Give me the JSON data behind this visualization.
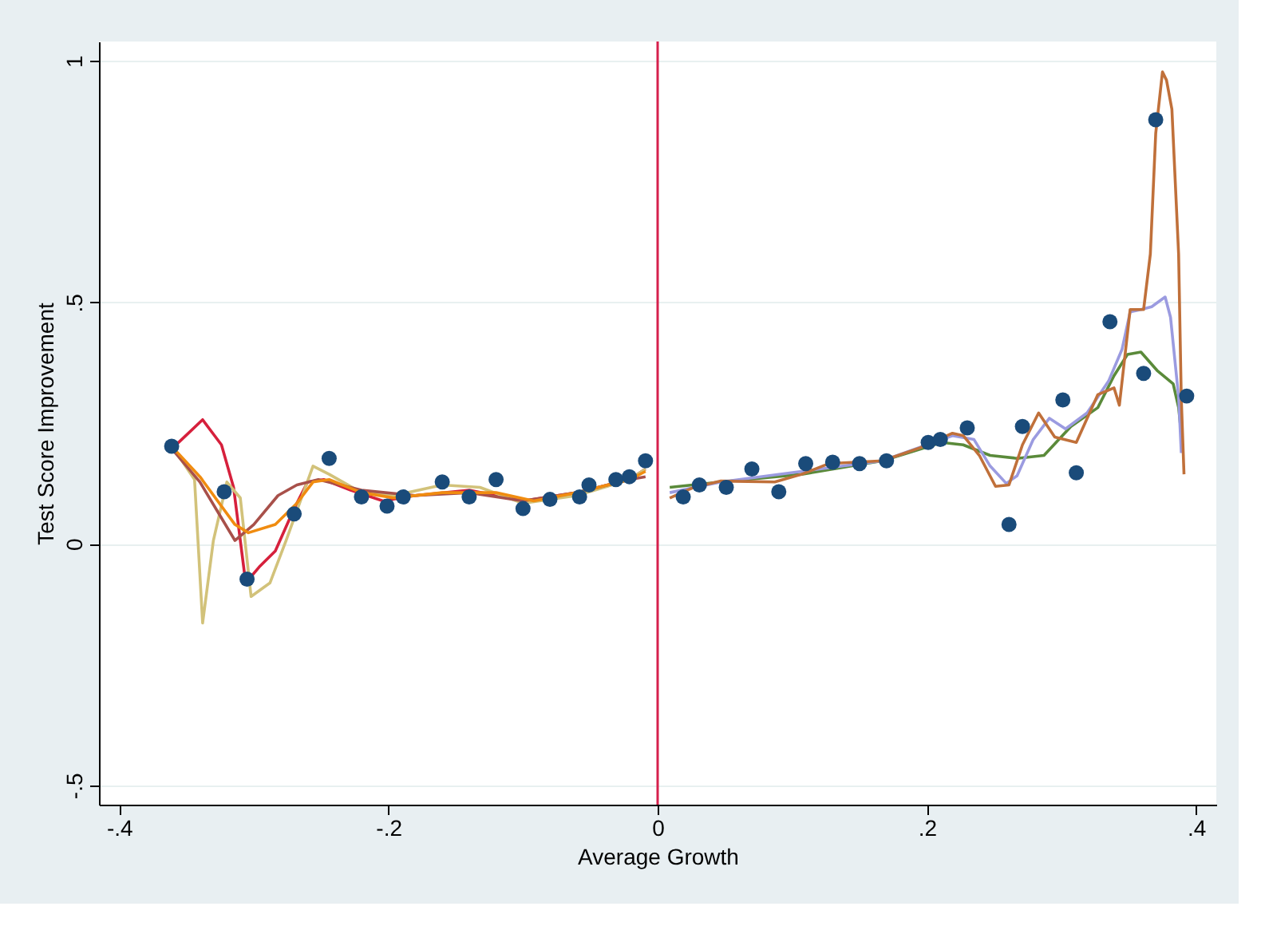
{
  "chart_data": {
    "type": "scatter",
    "xlabel": "Average Growth",
    "ylabel": "Test Score Improvement",
    "xlim": [
      -0.415,
      0.415
    ],
    "ylim": [
      -0.54,
      1.04
    ],
    "xticks": [
      {
        "value": -0.4,
        "label": "-.4"
      },
      {
        "value": -0.2,
        "label": "-.2"
      },
      0,
      {
        "value": 0.2,
        "label": ".2"
      },
      {
        "value": 0.4,
        "label": ".4"
      }
    ],
    "yticks": [
      {
        "value": -0.5,
        "label": "-.5"
      },
      0,
      {
        "value": 0.5,
        "label": ".5"
      },
      1
    ],
    "grid": "y",
    "ref_lines": [
      {
        "axis": "x",
        "value": 0,
        "color": "#d6204c"
      }
    ],
    "series": [
      {
        "color": "#1a4b7a",
        "marker": "circle",
        "x": [
          -0.361,
          -0.322,
          -0.305,
          -0.27,
          -0.244,
          -0.22,
          -0.201,
          -0.189,
          -0.16,
          -0.14,
          -0.12,
          -0.1,
          -0.08,
          -0.058,
          -0.051,
          -0.031,
          -0.021,
          -0.009,
          0.019,
          0.031,
          0.051,
          0.07,
          0.09,
          0.11,
          0.13,
          0.15,
          0.17,
          0.201,
          0.21,
          0.23,
          0.261,
          0.271,
          0.301,
          0.311,
          0.336,
          0.361,
          0.37,
          0.393
        ],
        "values": [
          0.202,
          0.108,
          -0.073,
          0.062,
          0.177,
          0.097,
          0.078,
          0.097,
          0.128,
          0.097,
          0.133,
          0.073,
          0.092,
          0.097,
          0.122,
          0.133,
          0.139,
          0.172,
          0.097,
          0.122,
          0.117,
          0.155,
          0.108,
          0.166,
          0.169,
          0.166,
          0.172,
          0.21,
          0.216,
          0.24,
          0.04,
          0.243,
          0.298,
          0.147,
          0.46,
          0.353,
          0.878,
          0.306
        ]
      },
      {
        "type": "line",
        "color": "#d6203c",
        "x": [
          -0.36,
          -0.338,
          -0.324,
          -0.315,
          -0.306,
          -0.296,
          -0.284,
          -0.27,
          -0.26,
          -0.248,
          -0.228,
          -0.204,
          -0.18,
          -0.14,
          -0.12,
          -0.1,
          -0.06,
          -0.021,
          -0.009
        ],
        "values": [
          0.199,
          0.257,
          0.205,
          0.117,
          -0.081,
          -0.048,
          -0.015,
          0.073,
          0.128,
          0.133,
          0.111,
          0.089,
          0.1,
          0.111,
          0.1,
          0.089,
          0.106,
          0.133,
          0.155
        ]
      },
      {
        "type": "line",
        "color": "#d2c27a",
        "x": [
          -0.36,
          -0.344,
          -0.338,
          -0.33,
          -0.32,
          -0.31,
          -0.302,
          -0.288,
          -0.276,
          -0.256,
          -0.244,
          -0.22,
          -0.196,
          -0.16,
          -0.132,
          -0.1,
          -0.06,
          -0.021,
          -0.009
        ],
        "values": [
          0.199,
          0.133,
          -0.164,
          0.007,
          0.128,
          0.095,
          -0.109,
          -0.081,
          0.007,
          0.161,
          0.144,
          0.106,
          0.1,
          0.122,
          0.117,
          0.084,
          0.1,
          0.133,
          0.155
        ]
      },
      {
        "type": "line",
        "color": "#a8504a",
        "x": [
          -0.36,
          -0.34,
          -0.314,
          -0.3,
          -0.282,
          -0.268,
          -0.252,
          -0.22,
          -0.18,
          -0.14,
          -0.1,
          -0.06,
          -0.021,
          -0.009
        ],
        "values": [
          0.194,
          0.128,
          0.007,
          0.04,
          0.1,
          0.122,
          0.133,
          0.111,
          0.1,
          0.106,
          0.089,
          0.106,
          0.133,
          0.139
        ]
      },
      {
        "type": "line",
        "color": "#f08c10",
        "x": [
          -0.36,
          -0.34,
          -0.314,
          -0.304,
          -0.284,
          -0.268,
          -0.256,
          -0.244,
          -0.22,
          -0.196,
          -0.16,
          -0.12,
          -0.092,
          -0.06,
          -0.021,
          -0.009
        ],
        "values": [
          0.199,
          0.139,
          0.04,
          0.023,
          0.04,
          0.084,
          0.128,
          0.133,
          0.106,
          0.095,
          0.106,
          0.106,
          0.089,
          0.106,
          0.133,
          0.15
        ]
      },
      {
        "type": "line",
        "color": "#5a8a3a",
        "x": [
          0.009,
          0.047,
          0.107,
          0.167,
          0.211,
          0.227,
          0.247,
          0.267,
          0.287,
          0.307,
          0.327,
          0.339,
          0.349,
          0.359,
          0.371,
          0.383,
          0.387,
          0.389
        ],
        "values": [
          0.117,
          0.128,
          0.144,
          0.172,
          0.21,
          0.205,
          0.183,
          0.177,
          0.183,
          0.243,
          0.282,
          0.348,
          0.392,
          0.397,
          0.359,
          0.331,
          0.282,
          0.227
        ]
      },
      {
        "type": "line",
        "color": "#9b9be0",
        "x": [
          0.009,
          0.047,
          0.107,
          0.167,
          0.219,
          0.235,
          0.247,
          0.259,
          0.267,
          0.279,
          0.291,
          0.303,
          0.319,
          0.335,
          0.345,
          0.351,
          0.359,
          0.367,
          0.377,
          0.381,
          0.387,
          0.389
        ],
        "values": [
          0.106,
          0.128,
          0.15,
          0.172,
          0.224,
          0.216,
          0.161,
          0.125,
          0.141,
          0.216,
          0.26,
          0.238,
          0.271,
          0.337,
          0.403,
          0.48,
          0.485,
          0.491,
          0.511,
          0.469,
          0.304,
          0.188
        ]
      },
      {
        "type": "line",
        "color": "#c0703a",
        "x": [
          0.009,
          0.027,
          0.047,
          0.087,
          0.107,
          0.127,
          0.167,
          0.195,
          0.219,
          0.227,
          0.239,
          0.251,
          0.261,
          0.271,
          0.283,
          0.295,
          0.311,
          0.327,
          0.339,
          0.343,
          0.351,
          0.361,
          0.366,
          0.37,
          0.375,
          0.378,
          0.382,
          0.387,
          0.389,
          0.391
        ],
        "values": [
          0.095,
          0.117,
          0.13,
          0.128,
          0.144,
          0.166,
          0.172,
          0.199,
          0.229,
          0.224,
          0.183,
          0.119,
          0.122,
          0.205,
          0.271,
          0.221,
          0.21,
          0.309,
          0.323,
          0.287,
          0.485,
          0.485,
          0.6,
          0.85,
          0.977,
          0.96,
          0.9,
          0.6,
          0.3,
          0.144
        ]
      }
    ]
  }
}
